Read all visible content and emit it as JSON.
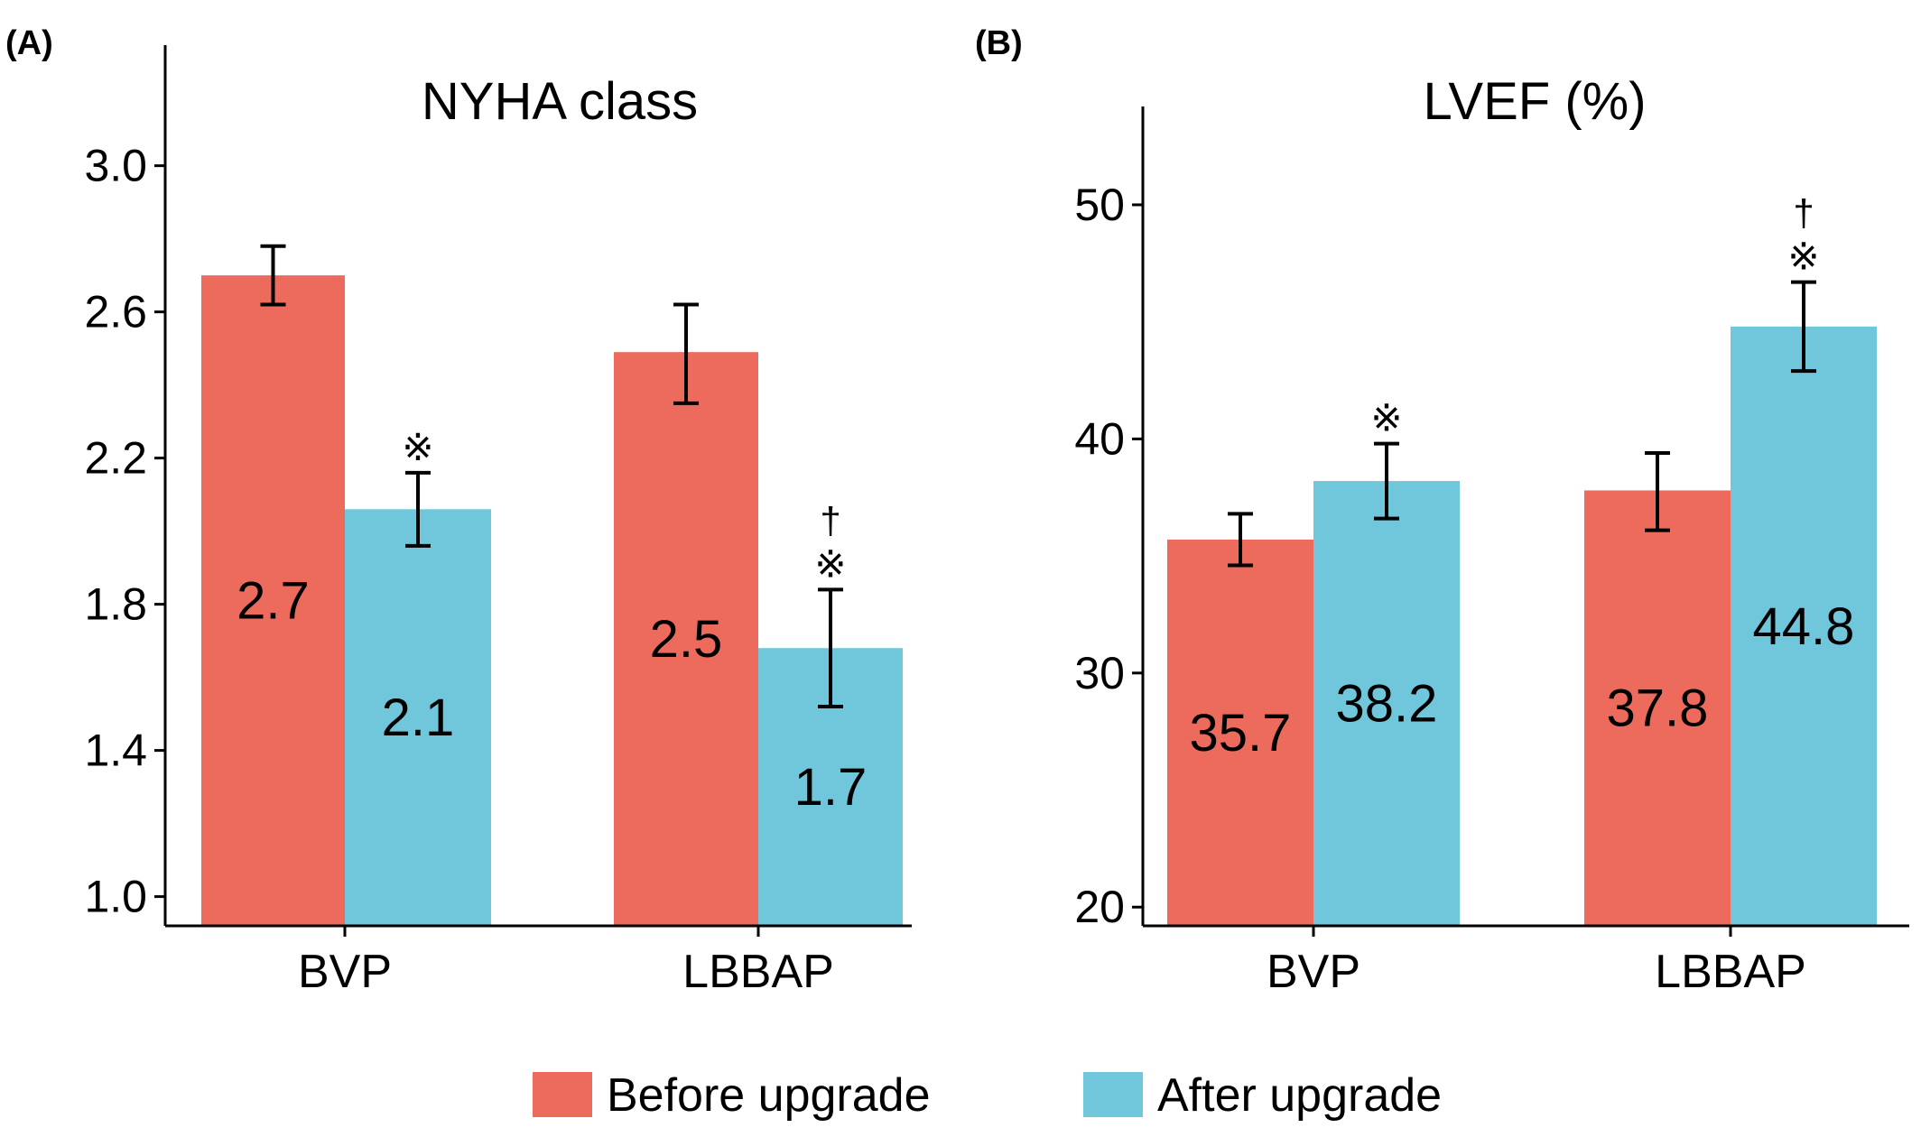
{
  "legend": {
    "items": [
      {
        "label": "Before upgrade",
        "color": "#EC6B5D"
      },
      {
        "label": "After upgrade",
        "color": "#70C6DB"
      }
    ]
  },
  "chart_data": [
    {
      "panel": "(A)",
      "type": "bar",
      "title": "NYHA class",
      "categories": [
        "BVP",
        "LBBAP"
      ],
      "ylim": [
        0.92,
        3.33
      ],
      "yticks": [
        "1.0",
        "1.4",
        "1.8",
        "2.2",
        "2.6",
        "3.0"
      ],
      "ytick_values": [
        1.0,
        1.4,
        1.8,
        2.2,
        2.6,
        3.0
      ],
      "series": [
        {
          "name": "Before upgrade",
          "color": "#EC6B5D",
          "values": [
            2.7,
            2.49
          ],
          "labels": [
            "2.7",
            "2.5"
          ],
          "err_low": [
            2.62,
            2.35
          ],
          "err_high": [
            2.78,
            2.62
          ],
          "annotations": [
            "",
            ""
          ]
        },
        {
          "name": "After upgrade",
          "color": "#70C6DB",
          "values": [
            2.06,
            1.68
          ],
          "labels": [
            "2.1",
            "1.7"
          ],
          "err_low": [
            1.96,
            1.52
          ],
          "err_high": [
            2.16,
            1.84
          ],
          "annotations": [
            "※",
            "†\n※"
          ]
        }
      ],
      "grid": false
    },
    {
      "panel": "(B)",
      "type": "bar",
      "title": "LVEF (%)",
      "categories": [
        "BVP",
        "LBBAP"
      ],
      "ylim": [
        19.2,
        54.2
      ],
      "yticks": [
        "20",
        "30",
        "40",
        "50"
      ],
      "ytick_values": [
        20,
        30,
        40,
        50
      ],
      "series": [
        {
          "name": "Before upgrade",
          "color": "#EC6B5D",
          "values": [
            35.7,
            37.8
          ],
          "labels": [
            "35.7",
            "37.8"
          ],
          "err_low": [
            34.6,
            36.1
          ],
          "err_high": [
            36.8,
            39.4
          ],
          "annotations": [
            "",
            ""
          ]
        },
        {
          "name": "After upgrade",
          "color": "#70C6DB",
          "values": [
            38.2,
            44.8
          ],
          "labels": [
            "38.2",
            "44.8"
          ],
          "err_low": [
            36.6,
            42.9
          ],
          "err_high": [
            39.8,
            46.7
          ],
          "annotations": [
            "※",
            "†\n※"
          ]
        }
      ],
      "grid": false
    }
  ]
}
